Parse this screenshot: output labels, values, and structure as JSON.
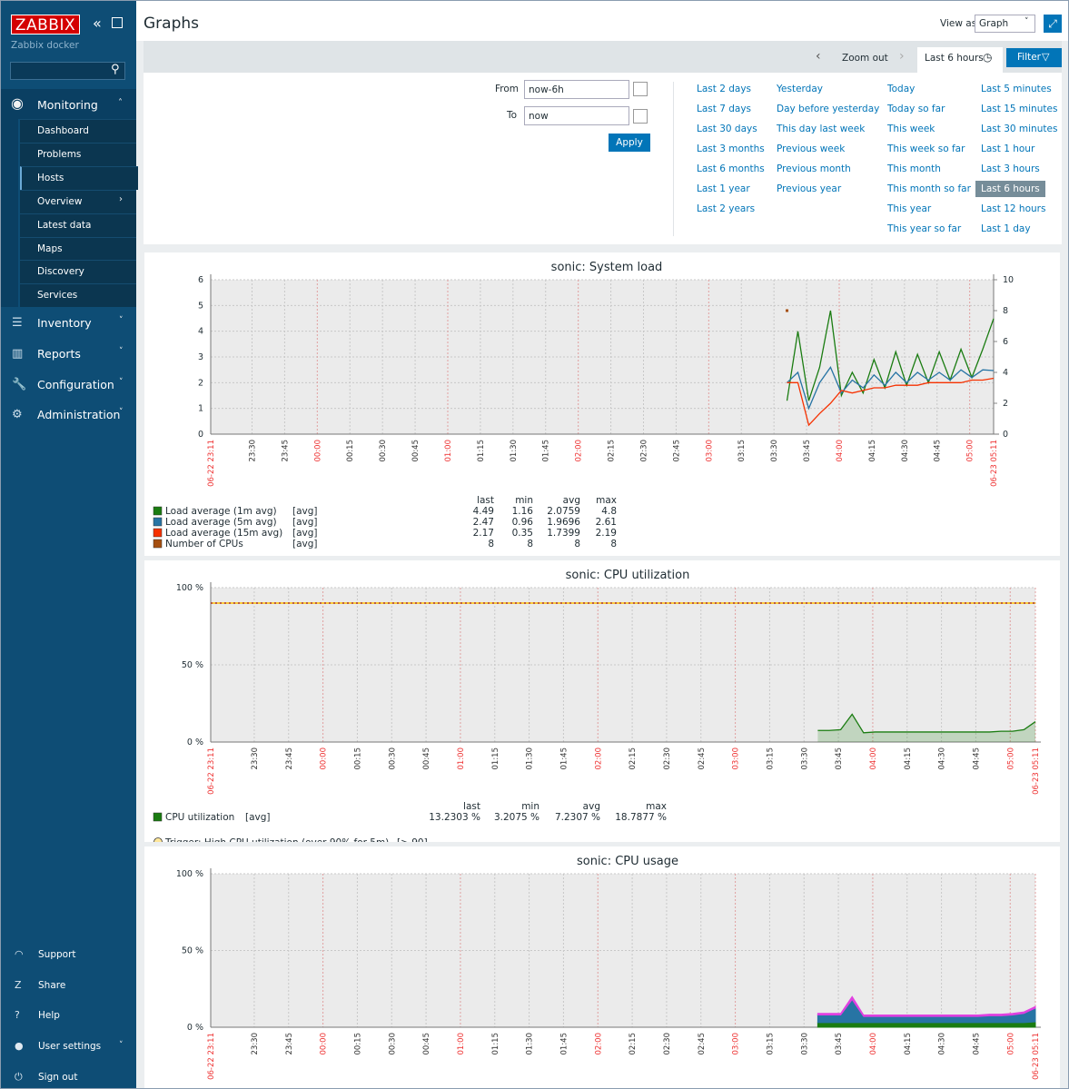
{
  "sidebar": {
    "logo": "ZABBIX",
    "subtitle": "Zabbix docker",
    "menu": [
      {
        "label": "Monitoring",
        "items": [
          "Dashboard",
          "Problems",
          "Hosts",
          "Overview",
          "Latest data",
          "Maps",
          "Discovery",
          "Services"
        ]
      },
      {
        "label": "Inventory"
      },
      {
        "label": "Reports"
      },
      {
        "label": "Configuration"
      },
      {
        "label": "Administration"
      }
    ],
    "selected": "Hosts",
    "bottom": [
      "Support",
      "Share",
      "Help",
      "User settings",
      "Sign out"
    ]
  },
  "header": {
    "title": "Graphs",
    "view_as_label": "View as",
    "view_as_value": "Graph"
  },
  "timebar": {
    "zoom_out": "Zoom out",
    "current": "Last 6 hours",
    "filter": "Filter"
  },
  "filter": {
    "from_label": "From",
    "from_value": "now-6h",
    "to_label": "To",
    "to_value": "now",
    "apply": "Apply",
    "quick_ranges": [
      [
        "Last 2 days",
        "Last 7 days",
        "Last 30 days",
        "Last 3 months",
        "Last 6 months",
        "Last 1 year",
        "Last 2 years"
      ],
      [
        "Yesterday",
        "Day before yesterday",
        "This day last week",
        "Previous week",
        "Previous month",
        "Previous year"
      ],
      [
        "Today",
        "Today so far",
        "This week",
        "This week so far",
        "This month",
        "This month so far",
        "This year",
        "This year so far"
      ],
      [
        "Last 5 minutes",
        "Last 15 minutes",
        "Last 30 minutes",
        "Last 1 hour",
        "Last 3 hours",
        "Last 6 hours",
        "Last 12 hours",
        "Last 1 day"
      ]
    ]
  },
  "graphs": [
    {
      "type": "line",
      "title": "sonic: System load",
      "ylim": [
        0,
        6
      ],
      "yticks": [
        0,
        1,
        2,
        3,
        4,
        5,
        6
      ],
      "y2lim": [
        0,
        10
      ],
      "y2ticks": [
        0,
        2,
        4,
        6,
        8,
        10
      ],
      "xlim": [
        "06-22 23:11",
        "06-23 05:11"
      ],
      "xticks": [
        "06-22 23:11",
        "23:30",
        "23:45",
        "00:00",
        "00:15",
        "00:30",
        "00:45",
        "01:00",
        "01:15",
        "01:30",
        "01:45",
        "02:00",
        "02:15",
        "02:30",
        "02:45",
        "03:00",
        "03:15",
        "03:30",
        "03:45",
        "04:00",
        "04:15",
        "04:30",
        "04:45",
        "05:00",
        "06-23 05:11"
      ],
      "x": [
        "03:36",
        "03:41",
        "03:46",
        "03:51",
        "03:56",
        "04:01",
        "04:06",
        "04:11",
        "04:16",
        "04:21",
        "04:26",
        "04:31",
        "04:36",
        "04:41",
        "04:46",
        "04:51",
        "04:56",
        "05:01",
        "05:06",
        "05:11"
      ],
      "legend_header": [
        "last",
        "min",
        "avg",
        "max"
      ],
      "series": [
        {
          "name": "Load average (1m avg)",
          "func": "[avg]",
          "color": "#1a7c11",
          "stats": [
            "4.49",
            "1.16",
            "2.0759",
            "4.8"
          ],
          "values": [
            1.3,
            4.0,
            1.3,
            2.6,
            4.8,
            1.5,
            2.4,
            1.6,
            2.9,
            1.8,
            3.2,
            1.9,
            3.1,
            2.0,
            3.2,
            2.1,
            3.3,
            2.2,
            3.3,
            4.49
          ]
        },
        {
          "name": "Load average (5m avg)",
          "func": "[avg]",
          "color": "#2774a4",
          "stats": [
            "2.47",
            "0.96",
            "1.9696",
            "2.61"
          ],
          "values": [
            2.0,
            2.4,
            1.0,
            2.0,
            2.6,
            1.6,
            2.1,
            1.8,
            2.3,
            1.9,
            2.4,
            2.0,
            2.4,
            2.1,
            2.4,
            2.1,
            2.5,
            2.2,
            2.5,
            2.47
          ]
        },
        {
          "name": "Load average (15m avg)",
          "func": "[avg]",
          "color": "#f63100",
          "stats": [
            "2.17",
            "0.35",
            "1.7399",
            "2.19"
          ],
          "values": [
            2.0,
            2.0,
            0.35,
            0.8,
            1.2,
            1.7,
            1.6,
            1.7,
            1.8,
            1.8,
            1.9,
            1.9,
            1.9,
            2.0,
            2.0,
            2.0,
            2.0,
            2.1,
            2.1,
            2.17
          ]
        },
        {
          "name": "Number of CPUs",
          "func": "[avg]",
          "color": "#a54f10",
          "axis": "y2",
          "stats": [
            "8",
            "8",
            "8",
            "8"
          ],
          "values": [
            8,
            null,
            null,
            null,
            null,
            null,
            null,
            null,
            null,
            null,
            null,
            null,
            null,
            null,
            null,
            null,
            null,
            null,
            null,
            null
          ]
        }
      ]
    },
    {
      "type": "line",
      "fill": true,
      "title": "sonic: CPU utilization",
      "ylim": [
        0,
        100
      ],
      "yticks": [
        {
          "value": 0,
          "label": "0 %"
        },
        {
          "value": 50,
          "label": "50 %"
        },
        {
          "value": 100,
          "label": "100 %"
        }
      ],
      "xlim": [
        "06-22 23:11",
        "06-23 05:11"
      ],
      "xticks": [
        "06-22 23:11",
        "23:30",
        "23:45",
        "00:00",
        "00:15",
        "00:30",
        "00:45",
        "01:00",
        "01:15",
        "01:30",
        "01:45",
        "02:00",
        "02:15",
        "02:30",
        "02:45",
        "03:00",
        "03:15",
        "03:30",
        "03:45",
        "04:00",
        "04:15",
        "04:30",
        "04:45",
        "05:00",
        "06-23 05:11"
      ],
      "x": [
        "03:36",
        "03:41",
        "03:46",
        "03:51",
        "03:56",
        "04:01",
        "04:06",
        "04:11",
        "04:16",
        "04:21",
        "04:26",
        "04:31",
        "04:36",
        "04:41",
        "04:46",
        "04:51",
        "04:56",
        "05:01",
        "05:06",
        "05:11"
      ],
      "legend_header": [
        "last",
        "min",
        "avg",
        "max"
      ],
      "series": [
        {
          "name": "CPU utilization",
          "func": "[avg]",
          "color": "#1a7c11",
          "stats": [
            "13.2303 %",
            "3.2075 %",
            "7.2307 %",
            "18.7877 %"
          ],
          "values": [
            7.5,
            7.5,
            8,
            18,
            6,
            6.5,
            6.5,
            6.5,
            6.5,
            6.5,
            6.5,
            6.5,
            6.5,
            6.5,
            6.5,
            6.5,
            7,
            7,
            8,
            13.2
          ]
        }
      ],
      "trigger": {
        "label": "Trigger: High CPU utilization (over 90% for 5m)",
        "condition": "[> 90]",
        "value": 90,
        "color": "#ffc000"
      }
    },
    {
      "type": "stacked",
      "title": "sonic: CPU usage",
      "ylim": [
        0,
        100
      ],
      "yticks": [
        {
          "value": 0,
          "label": "0 %"
        },
        {
          "value": 50,
          "label": "50 %"
        },
        {
          "value": 100,
          "label": "100 %"
        }
      ],
      "xlim": [
        "06-22 23:11",
        "06-23 05:11"
      ],
      "xticks": [
        "06-22 23:11",
        "23:30",
        "23:45",
        "00:00",
        "00:15",
        "00:30",
        "00:45",
        "01:00",
        "01:15",
        "01:30",
        "01:45",
        "02:00",
        "02:15",
        "02:30",
        "02:45",
        "03:00",
        "03:15",
        "03:30",
        "03:45",
        "04:00",
        "04:15",
        "04:30",
        "04:45",
        "05:00",
        "06-23 05:11"
      ],
      "x": [
        "03:36",
        "03:41",
        "03:46",
        "03:51",
        "03:56",
        "04:01",
        "04:06",
        "04:11",
        "04:16",
        "04:21",
        "04:26",
        "04:31",
        "04:36",
        "04:41",
        "04:46",
        "04:51",
        "04:56",
        "05:01",
        "05:06",
        "05:11"
      ],
      "series": [
        {
          "color": "#1a7c11",
          "values": [
            3,
            3,
            3,
            3,
            3,
            3,
            3,
            3,
            3,
            3,
            3,
            3,
            3,
            3,
            3,
            3,
            3,
            3,
            3,
            3.5
          ]
        },
        {
          "color": "#2774a4",
          "values": [
            5,
            5,
            5,
            15,
            4,
            4,
            4,
            4,
            4,
            4,
            4,
            4,
            4,
            4,
            4,
            4.5,
            4.5,
            5,
            6,
            9
          ]
        },
        {
          "color": "#e040e0",
          "values": [
            1,
            1,
            1,
            2,
            1,
            1,
            1,
            1,
            1,
            1,
            1,
            1,
            1,
            1,
            1,
            1,
            1,
            1,
            1,
            1
          ]
        }
      ]
    }
  ]
}
